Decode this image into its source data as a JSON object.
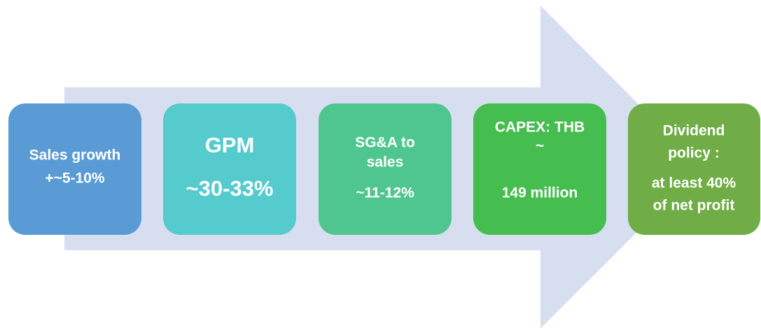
{
  "nodes": [
    {
      "lines": [
        "Sales growth",
        "+~5-10%"
      ]
    },
    {
      "lines": [
        "GPM",
        "~30-33%"
      ]
    },
    {
      "lines": [
        "SG&A to",
        "sales",
        "~11-12%"
      ]
    },
    {
      "lines": [
        "CAPEX: THB",
        "~",
        "149 million"
      ]
    },
    {
      "lines": [
        "Dividend",
        "policy :",
        "at least 40%",
        "of net profit"
      ]
    }
  ]
}
